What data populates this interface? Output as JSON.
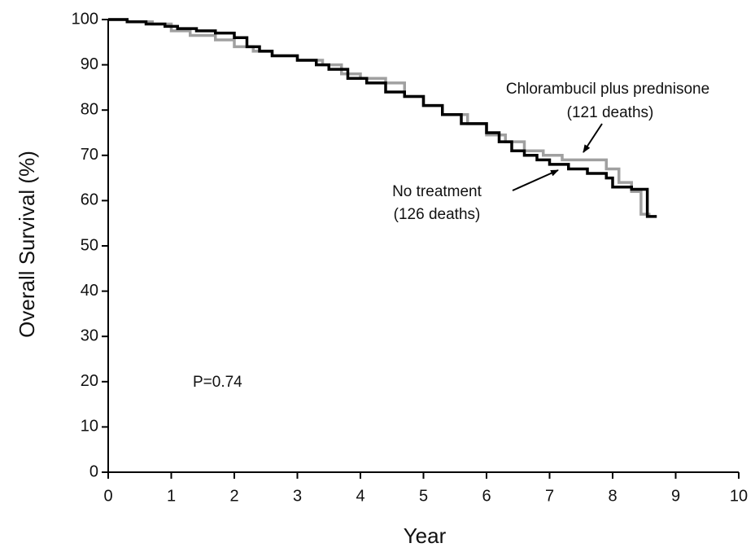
{
  "chart_data": {
    "type": "step",
    "xlabel": "Year",
    "ylabel": "Overall Survival (%)",
    "xlim": [
      0,
      10
    ],
    "ylim": [
      0,
      100
    ],
    "xticks": [
      0,
      1,
      2,
      3,
      4,
      5,
      6,
      7,
      8,
      9,
      10
    ],
    "yticks": [
      0,
      10,
      20,
      30,
      40,
      50,
      60,
      70,
      80,
      90,
      100
    ],
    "series": [
      {
        "name": "No treatment",
        "color": "#000000",
        "x": [
          0,
          0.3,
          0.6,
          0.9,
          1.1,
          1.4,
          1.7,
          2.0,
          2.2,
          2.4,
          2.6,
          3.0,
          3.3,
          3.5,
          3.8,
          4.1,
          4.4,
          4.7,
          5.0,
          5.3,
          5.6,
          6.0,
          6.2,
          6.4,
          6.6,
          6.8,
          7.0,
          7.3,
          7.6,
          7.9,
          8.0,
          8.3,
          8.55,
          8.7
        ],
        "values": [
          100,
          99.5,
          99,
          98.5,
          98,
          97.5,
          97,
          96,
          94,
          93,
          92,
          91,
          90,
          89,
          87,
          86,
          84,
          83,
          81,
          79,
          77,
          75,
          73,
          71,
          70,
          69,
          68,
          67,
          66,
          65,
          63,
          62.5,
          56.5,
          56.5
        ]
      },
      {
        "name": "Chlorambucil plus prednisone",
        "color": "#a0a0a0",
        "x": [
          0,
          0.3,
          0.7,
          1.0,
          1.3,
          1.7,
          2.0,
          2.3,
          2.6,
          3.0,
          3.4,
          3.7,
          4.0,
          4.4,
          4.7,
          5.0,
          5.3,
          5.7,
          6.0,
          6.3,
          6.6,
          6.9,
          7.2,
          7.6,
          7.9,
          8.1,
          8.3,
          8.45,
          8.6
        ],
        "values": [
          100,
          99.5,
          99,
          97.5,
          96.5,
          95.5,
          94,
          93,
          92,
          91,
          90,
          88,
          87,
          86,
          83,
          81,
          79,
          77,
          74.5,
          73,
          71,
          70,
          69,
          69,
          67,
          64,
          62,
          57,
          57
        ]
      }
    ],
    "annotations": [
      "Chlorambucil plus prednisone",
      "(121 deaths)",
      "No treatment",
      "(126 deaths)",
      "P=0.74"
    ]
  }
}
